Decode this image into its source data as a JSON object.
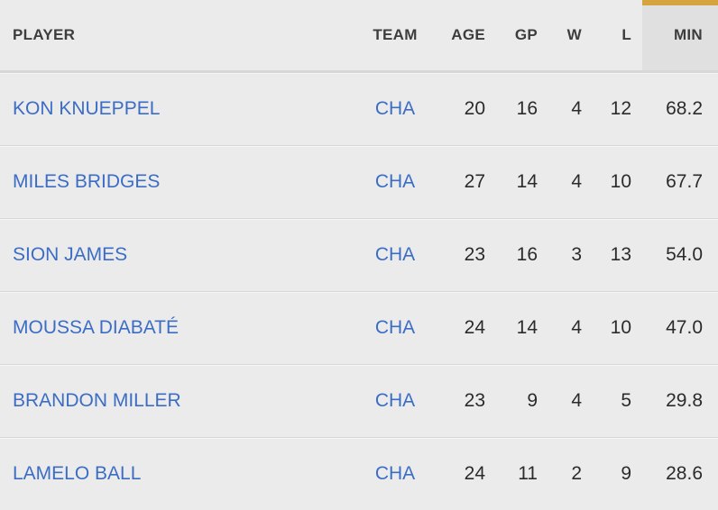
{
  "colors": {
    "page_bg": "#ebebeb",
    "sorted_header_bg": "#e0e0e0",
    "sort_indicator": "#d6a43e",
    "separator": "#d7d7d7",
    "separator_highlight": "#f7f7f7",
    "header_text": "#3d3d3d",
    "stat_text": "#2b2b2b",
    "link": "#3c6dc5"
  },
  "table": {
    "sorted_column": "MIN",
    "sort_indicator_icon": "gold-top-bar",
    "columns": [
      {
        "key": "player",
        "label": "PLAYER"
      },
      {
        "key": "team",
        "label": "TEAM"
      },
      {
        "key": "age",
        "label": "AGE"
      },
      {
        "key": "gp",
        "label": "GP"
      },
      {
        "key": "w",
        "label": "W"
      },
      {
        "key": "l",
        "label": "L"
      },
      {
        "key": "min",
        "label": "MIN"
      }
    ],
    "rows": [
      {
        "player": "KON KNUEPPEL",
        "team": "CHA",
        "age": "20",
        "gp": "16",
        "w": "4",
        "l": "12",
        "min": "68.2"
      },
      {
        "player": "MILES BRIDGES",
        "team": "CHA",
        "age": "27",
        "gp": "14",
        "w": "4",
        "l": "10",
        "min": "67.7"
      },
      {
        "player": "SION JAMES",
        "team": "CHA",
        "age": "23",
        "gp": "16",
        "w": "3",
        "l": "13",
        "min": "54.0"
      },
      {
        "player": "MOUSSA DIABATÉ",
        "team": "CHA",
        "age": "24",
        "gp": "14",
        "w": "4",
        "l": "10",
        "min": "47.0"
      },
      {
        "player": "BRANDON MILLER",
        "team": "CHA",
        "age": "23",
        "gp": "9",
        "w": "4",
        "l": "5",
        "min": "29.8"
      },
      {
        "player": "LAMELO BALL",
        "team": "CHA",
        "age": "24",
        "gp": "11",
        "w": "2",
        "l": "9",
        "min": "28.6"
      }
    ]
  }
}
